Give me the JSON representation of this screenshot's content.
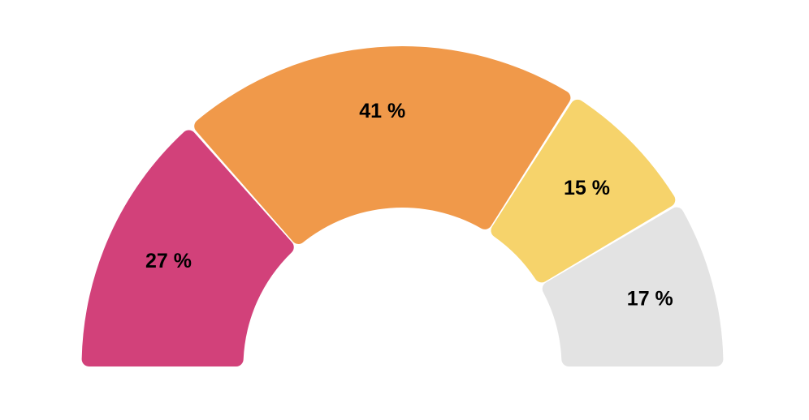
{
  "page": {
    "background": "#ffffff"
  },
  "chart_data": {
    "type": "pie",
    "subtype": "half-donut",
    "title": "",
    "legend": "none",
    "start_angle": 180,
    "end_angle": 0,
    "label_format": "{value} %",
    "label_color": "#000000",
    "gap_color": "#ffffff",
    "slices": [
      {
        "value": 27,
        "label": "27 %",
        "color": "#d2417a"
      },
      {
        "value": 41,
        "label": "41 %",
        "color": "#f0994a"
      },
      {
        "value": 15,
        "label": "15 %",
        "color": "#f6d36b"
      },
      {
        "value": 17,
        "label": "17 %",
        "color": "#e3e3e3"
      }
    ]
  }
}
